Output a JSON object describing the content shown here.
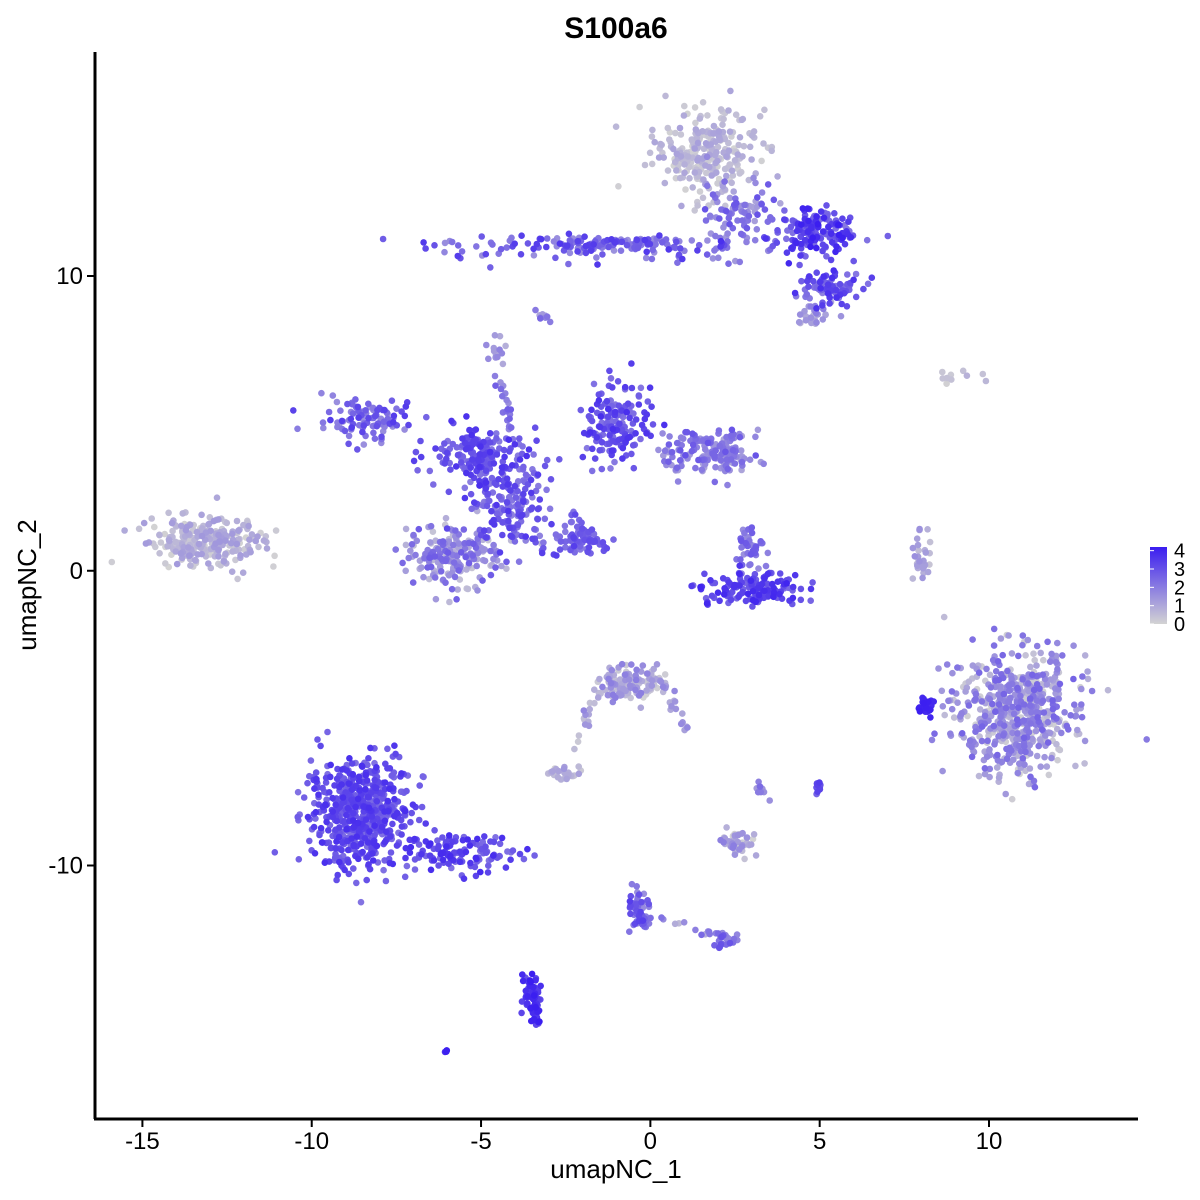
{
  "chart_data": {
    "type": "scatter",
    "title": "S100a6",
    "xlabel": "umapNC_1",
    "ylabel": "umapNC_2",
    "xlim": [
      -16.4,
      14.4
    ],
    "ylim": [
      -18.6,
      17.6
    ],
    "x_ticks": [
      -15,
      -10,
      -5,
      0,
      5,
      10
    ],
    "y_ticks": [
      -10,
      0,
      10
    ],
    "x_tick_labels": [
      "-15",
      "-10",
      "-5",
      "0",
      "5",
      "10"
    ],
    "y_tick_labels": [
      "-10",
      "0",
      "10"
    ],
    "grid": false,
    "color_scale": {
      "low_color": "#d3d3d3",
      "high_color": "#3a1df0",
      "min": 0,
      "max": 4.2,
      "legend_ticks": [
        0,
        1,
        2,
        3,
        4
      ],
      "legend_tick_labels": [
        "0",
        "1",
        "2",
        "3",
        "4"
      ],
      "legend_position": "right"
    },
    "clusters": [
      {
        "cx": 1.6,
        "cy": 14.2,
        "sx": 1.0,
        "sy": 1.0,
        "n": 260,
        "expr": [
          0.0,
          1.2
        ]
      },
      {
        "cx": 4.8,
        "cy": 11.5,
        "sx": 0.9,
        "sy": 0.5,
        "n": 160,
        "expr": [
          2.0,
          4.2
        ]
      },
      {
        "cx": 5.2,
        "cy": 9.6,
        "sx": 0.7,
        "sy": 0.4,
        "n": 90,
        "expr": [
          1.8,
          3.8
        ]
      },
      {
        "cx": 4.8,
        "cy": 8.7,
        "sx": 0.4,
        "sy": 0.3,
        "n": 30,
        "expr": [
          0.5,
          2.0
        ]
      },
      {
        "cx": -1.5,
        "cy": 11.0,
        "sx": 3.8,
        "sy": 0.28,
        "n": 150,
        "expr": [
          1.5,
          3.6
        ]
      },
      {
        "cx": 2.6,
        "cy": 12.2,
        "sx": 0.8,
        "sy": 0.7,
        "n": 80,
        "expr": [
          1.0,
          3.0
        ]
      },
      {
        "cx": -3.2,
        "cy": 8.6,
        "sx": 0.15,
        "sy": 0.2,
        "n": 10,
        "expr": [
          1.0,
          2.5
        ]
      },
      {
        "cx": -4.6,
        "cy": 7.4,
        "sx": 0.2,
        "sy": 0.3,
        "n": 15,
        "expr": [
          0.8,
          2.0
        ]
      },
      {
        "cx": -8.3,
        "cy": 5.1,
        "sx": 0.9,
        "sy": 0.5,
        "n": 100,
        "expr": [
          1.5,
          3.5
        ]
      },
      {
        "cx": -5.0,
        "cy": 4.0,
        "sx": 1.0,
        "sy": 0.6,
        "n": 150,
        "expr": [
          2.0,
          3.8
        ]
      },
      {
        "cx": -4.2,
        "cy": 2.3,
        "sx": 0.8,
        "sy": 1.0,
        "n": 180,
        "expr": [
          1.8,
          3.6
        ]
      },
      {
        "cx": -1.0,
        "cy": 4.9,
        "sx": 0.6,
        "sy": 1.0,
        "n": 170,
        "expr": [
          2.0,
          3.8
        ]
      },
      {
        "cx": 1.5,
        "cy": 4.0,
        "sx": 0.9,
        "sy": 0.6,
        "n": 110,
        "expr": [
          1.0,
          3.0
        ]
      },
      {
        "cx": 2.3,
        "cy": 4.0,
        "sx": 0.35,
        "sy": 0.55,
        "n": 60,
        "expr": [
          1.0,
          2.6
        ]
      },
      {
        "cx": -5.8,
        "cy": 0.5,
        "sx": 0.9,
        "sy": 0.7,
        "n": 200,
        "expr": [
          0.3,
          2.8
        ]
      },
      {
        "cx": -2.2,
        "cy": 1.0,
        "sx": 0.7,
        "sy": 0.4,
        "n": 50,
        "expr": [
          2.0,
          3.5
        ]
      },
      {
        "cx": -13.1,
        "cy": 1.0,
        "sx": 1.1,
        "sy": 0.55,
        "n": 260,
        "expr": [
          0.0,
          1.4
        ]
      },
      {
        "cx": 3.0,
        "cy": -0.6,
        "sx": 1.0,
        "sy": 0.4,
        "n": 140,
        "expr": [
          2.4,
          4.0
        ]
      },
      {
        "cx": 3.0,
        "cy": 0.7,
        "sx": 0.3,
        "sy": 0.45,
        "n": 40,
        "expr": [
          1.5,
          3.0
        ]
      },
      {
        "cx": 8.0,
        "cy": 0.4,
        "sx": 0.2,
        "sy": 0.5,
        "n": 30,
        "expr": [
          0.3,
          1.6
        ]
      },
      {
        "cx": 10.8,
        "cy": -4.8,
        "sx": 1.2,
        "sy": 1.35,
        "n": 600,
        "expr": [
          0.0,
          2.6
        ]
      },
      {
        "cx": 8.1,
        "cy": -4.6,
        "sx": 0.2,
        "sy": 0.25,
        "n": 30,
        "expr": [
          3.8,
          4.2
        ]
      },
      {
        "cx": -0.6,
        "cy": -3.8,
        "sx": 0.6,
        "sy": 0.45,
        "n": 130,
        "expr": [
          0.0,
          2.0
        ]
      },
      {
        "cx": -2.5,
        "cy": -6.9,
        "sx": 0.35,
        "sy": 0.2,
        "n": 30,
        "expr": [
          0.0,
          1.5
        ]
      },
      {
        "cx": 2.5,
        "cy": -9.2,
        "sx": 0.35,
        "sy": 0.35,
        "n": 50,
        "expr": [
          0.0,
          2.0
        ]
      },
      {
        "cx": -8.6,
        "cy": -8.2,
        "sx": 1.0,
        "sy": 1.2,
        "n": 600,
        "expr": [
          2.2,
          3.8
        ]
      },
      {
        "cx": -5.6,
        "cy": -9.6,
        "sx": 1.0,
        "sy": 0.4,
        "n": 120,
        "expr": [
          2.2,
          3.9
        ]
      },
      {
        "cx": -3.5,
        "cy": -14.6,
        "sx": 0.2,
        "sy": 0.6,
        "n": 45,
        "expr": [
          3.0,
          4.2
        ]
      },
      {
        "cx": -0.3,
        "cy": -11.6,
        "sx": 0.2,
        "sy": 0.5,
        "n": 35,
        "expr": [
          1.5,
          3.5
        ]
      },
      {
        "cx": 2.2,
        "cy": -12.5,
        "sx": 0.25,
        "sy": 0.15,
        "n": 20,
        "expr": [
          1.5,
          3.0
        ]
      },
      {
        "cx": 5.0,
        "cy": -7.3,
        "sx": 0.1,
        "sy": 0.15,
        "n": 12,
        "expr": [
          2.0,
          3.5
        ]
      },
      {
        "cx": 8.8,
        "cy": 6.6,
        "sx": 0.7,
        "sy": 0.3,
        "n": 10,
        "expr": [
          0.0,
          0.8
        ]
      },
      {
        "cx": -6.0,
        "cy": -16.3,
        "sx": 0.05,
        "sy": 0.05,
        "n": 4,
        "expr": [
          3.8,
          4.2
        ]
      }
    ],
    "strands": [
      {
        "from": [
          -2.5,
          11.0
        ],
        "to": [
          0.5,
          11.2
        ],
        "n": 40,
        "expr": [
          1.5,
          3.5
        ]
      },
      {
        "from": [
          -4.6,
          7.0
        ],
        "to": [
          -4.0,
          4.5
        ],
        "n": 20,
        "expr": [
          1.5,
          3.0
        ]
      },
      {
        "from": [
          -2.4,
          1.9
        ],
        "to": [
          -1.3,
          0.7
        ],
        "n": 30,
        "expr": [
          2.0,
          3.2
        ]
      },
      {
        "from": [
          -1.5,
          -4.0
        ],
        "to": [
          -2.5,
          -6.5
        ],
        "n": 15,
        "expr": [
          0.2,
          1.8
        ]
      },
      {
        "from": [
          0.2,
          -3.6
        ],
        "to": [
          1.2,
          -5.6
        ],
        "n": 20,
        "expr": [
          0.5,
          2.0
        ]
      },
      {
        "from": [
          -0.6,
          -10.6
        ],
        "to": [
          -0.2,
          -12.2
        ],
        "n": 25,
        "expr": [
          2.0,
          3.6
        ]
      },
      {
        "from": [
          0.2,
          -11.8
        ],
        "to": [
          2.4,
          -12.6
        ],
        "n": 20,
        "expr": [
          0.5,
          2.5
        ]
      },
      {
        "from": [
          -3.7,
          -13.6
        ],
        "to": [
          -3.3,
          -15.4
        ],
        "n": 30,
        "expr": [
          2.8,
          4.2
        ]
      },
      {
        "from": [
          3.2,
          -7.3
        ],
        "to": [
          3.4,
          -7.7
        ],
        "n": 8,
        "expr": [
          1.0,
          2.5
        ]
      }
    ]
  }
}
